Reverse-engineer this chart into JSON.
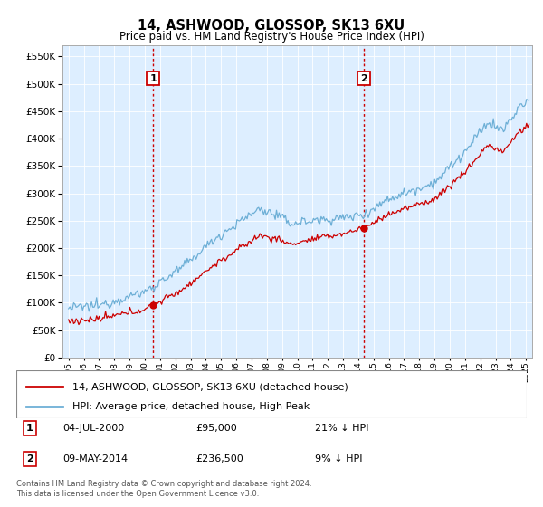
{
  "title": "14, ASHWOOD, GLOSSOP, SK13 6XU",
  "subtitle": "Price paid vs. HM Land Registry's House Price Index (HPI)",
  "sale1_date": "04-JUL-2000",
  "sale1_price": 95000,
  "sale1_label": "21% ↓ HPI",
  "sale1_x": 2000.54,
  "sale2_date": "09-MAY-2014",
  "sale2_price": 236500,
  "sale2_label": "9% ↓ HPI",
  "sale2_x": 2014.36,
  "legend_property": "14, ASHWOOD, GLOSSOP, SK13 6XU (detached house)",
  "legend_hpi": "HPI: Average price, detached house, High Peak",
  "footer1": "Contains HM Land Registry data © Crown copyright and database right 2024.",
  "footer2": "This data is licensed under the Open Government Licence v3.0.",
  "hpi_color": "#6dafd6",
  "sale_color": "#cc0000",
  "marker_color": "#cc0000",
  "vline_color": "#cc0000",
  "bg_color": "#ddeeff",
  "ylim_min": 0,
  "ylim_max": 570000,
  "xlim_min": 1994.6,
  "xlim_max": 2025.4
}
